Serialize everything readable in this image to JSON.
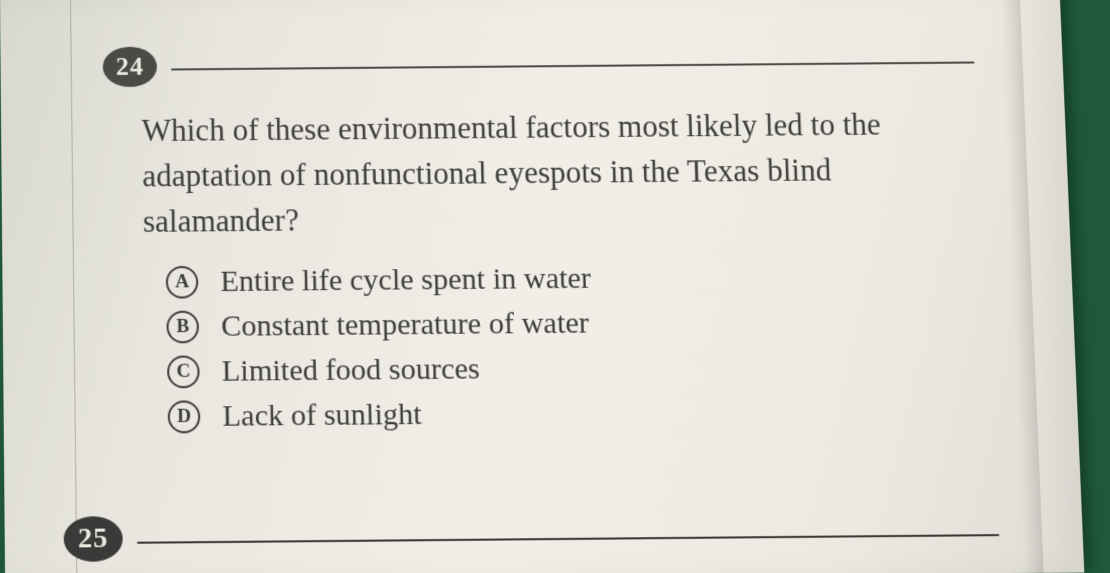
{
  "page": {
    "background_color": "#1e5a3a",
    "paper_color": "#ece9e0",
    "text_color": "#3d3d3a",
    "badge_bg": "#4a4a47",
    "badge_fg": "#eceadf",
    "font_family": "Georgia, 'Times New Roman', serif",
    "question_fontsize": 31,
    "option_fontsize": 30
  },
  "question24": {
    "number": "24",
    "text": "Which of these environmental factors most likely led to the adaptation of nonfunctional eyespots in the Texas blind salamander?",
    "options": [
      {
        "letter": "A",
        "text": "Entire life cycle spent in water"
      },
      {
        "letter": "B",
        "text": "Constant temperature of water"
      },
      {
        "letter": "C",
        "text": "Limited food sources"
      },
      {
        "letter": "D",
        "text": "Lack of sunlight"
      }
    ]
  },
  "question25": {
    "number": "25"
  }
}
